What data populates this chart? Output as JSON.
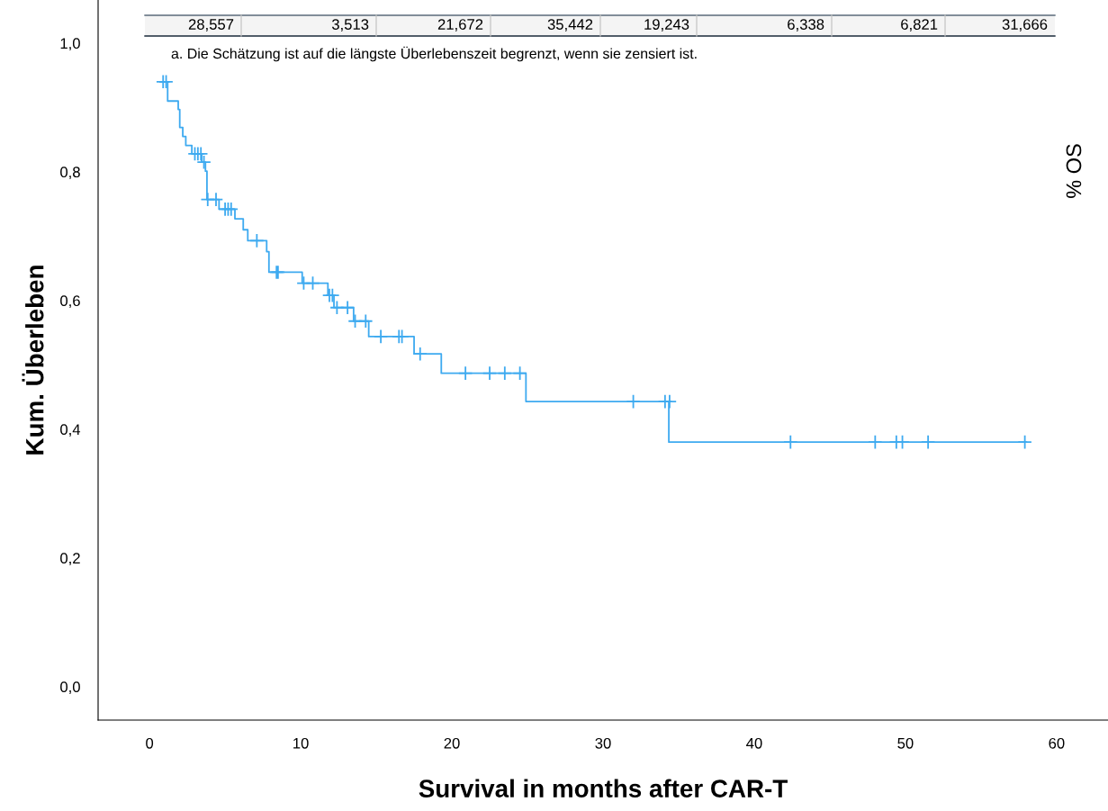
{
  "chart_data": {
    "type": "step",
    "xlabel": "Survival in months after CAR-T",
    "ylabel": "Kum. Überleben",
    "annotations": [
      "a. Die Schätzung ist auf die längste Überlebenszeit begrenzt, wenn sie zensiert ist.",
      "% OS",
      "28,557",
      "3,513",
      "21,672",
      "35,442",
      "19,243",
      "6,338",
      "6,821",
      "31,666"
    ],
    "xlim": [
      -3.4,
      63.4
    ],
    "xticks": [
      0,
      10,
      20,
      30,
      40,
      50,
      60
    ],
    "ylim": [
      -0.052,
      1.067
    ],
    "yticks": [
      {
        "value": 0,
        "label": "0,0"
      },
      {
        "value": 0.2,
        "label": "0,2"
      },
      {
        "value": 0.4,
        "label": "0,4"
      },
      {
        "value": 0.6,
        "label": "0,6"
      },
      {
        "value": 0.8,
        "label": "0,8"
      },
      {
        "value": 1.0,
        "label": "1,0"
      }
    ],
    "grid": false,
    "legend": false,
    "series": [
      {
        "color": "#3eaaf0",
        "line_style": "solid",
        "x": [
          0.7,
          1.2,
          1.9,
          2.0,
          2.2,
          2.4,
          2.8,
          3.45,
          3.7,
          3.8,
          4.6,
          5.65,
          6.2,
          6.5,
          7.75,
          7.9,
          10.1,
          11.8,
          12.2,
          13.5,
          14.5,
          17.5,
          19.3,
          24.9,
          34.35,
          58.0
        ],
        "values": [
          0.94,
          0.91,
          0.897,
          0.869,
          0.855,
          0.841,
          0.828,
          0.815,
          0.801,
          0.757,
          0.742,
          0.727,
          0.71,
          0.693,
          0.676,
          0.644,
          0.627,
          0.608,
          0.589,
          0.568,
          0.544,
          0.517,
          0.487,
          0.443,
          0.38,
          0.38
        ]
      },
      {
        "type": "scatter",
        "color": "#3eaaf0",
        "marker": "cross",
        "x": [
          0.9,
          1.1,
          3.0,
          3.2,
          3.4,
          3.6,
          3.85,
          4.4,
          5.0,
          5.2,
          5.4,
          7.1,
          8.4,
          8.5,
          10.2,
          10.8,
          11.9,
          12.1,
          12.4,
          13.1,
          13.6,
          14.3,
          15.3,
          16.5,
          16.7,
          17.9,
          20.9,
          22.5,
          23.5,
          24.5,
          32.0,
          34.1,
          34.4,
          42.4,
          48.0,
          49.4,
          49.8,
          51.5,
          57.9
        ],
        "values": [
          0.94,
          0.94,
          0.828,
          0.828,
          0.828,
          0.815,
          0.757,
          0.757,
          0.742,
          0.742,
          0.742,
          0.693,
          0.644,
          0.644,
          0.627,
          0.627,
          0.608,
          0.608,
          0.589,
          0.589,
          0.568,
          0.568,
          0.544,
          0.544,
          0.544,
          0.517,
          0.487,
          0.487,
          0.487,
          0.487,
          0.443,
          0.443,
          0.443,
          0.38,
          0.38,
          0.38,
          0.38,
          0.38,
          0.38
        ]
      }
    ]
  }
}
